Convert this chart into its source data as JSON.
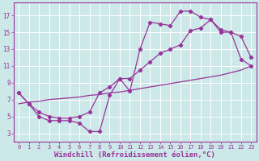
{
  "background_color": "#cce8e8",
  "grid_color": "#aacccc",
  "line_color": "#993399",
  "marker_color": "#993399",
  "xlabel": "Windchill (Refroidissement éolien,°C)",
  "xlabel_fontsize": 6.5,
  "xtick_labels": [
    "0",
    "1",
    "2",
    "3",
    "4",
    "5",
    "6",
    "7",
    "8",
    "9",
    "10",
    "11",
    "12",
    "13",
    "14",
    "15",
    "16",
    "17",
    "18",
    "19",
    "20",
    "21",
    "22",
    "23"
  ],
  "ytick_labels": [
    "3",
    "5",
    "7",
    "9",
    "11",
    "13",
    "15",
    "17"
  ],
  "ytick_vals": [
    3,
    5,
    7,
    9,
    11,
    13,
    15,
    17
  ],
  "xlim": [
    -0.5,
    23.5
  ],
  "ylim": [
    2.0,
    18.5
  ],
  "line1_x": [
    0,
    1,
    2,
    3,
    4,
    5,
    6,
    7,
    8,
    9,
    10,
    11,
    12,
    13,
    14,
    15,
    16,
    17,
    18,
    19,
    20,
    21,
    22,
    23
  ],
  "line1_y": [
    7.8,
    6.5,
    5.0,
    4.5,
    4.5,
    4.5,
    4.2,
    3.2,
    3.2,
    7.5,
    9.5,
    8.0,
    13.0,
    16.2,
    16.0,
    15.8,
    17.5,
    17.5,
    16.8,
    16.5,
    15.3,
    15.0,
    14.5,
    12.0
  ],
  "line2_x": [
    0,
    1,
    2,
    3,
    4,
    5,
    6,
    7,
    8,
    9,
    10,
    11,
    12,
    13,
    14,
    15,
    16,
    17,
    18,
    19,
    20,
    21,
    22,
    23
  ],
  "line2_y": [
    7.8,
    6.5,
    5.5,
    5.0,
    4.8,
    4.8,
    5.0,
    5.5,
    7.8,
    8.5,
    9.5,
    9.5,
    10.5,
    11.5,
    12.5,
    13.0,
    13.5,
    15.2,
    15.5,
    16.5,
    15.0,
    15.0,
    11.8,
    11.0
  ],
  "line3_x": [
    0,
    1,
    2,
    3,
    4,
    5,
    6,
    7,
    8,
    9,
    10,
    11,
    12,
    13,
    14,
    15,
    16,
    17,
    18,
    19,
    20,
    21,
    22,
    23
  ],
  "line3_y": [
    6.5,
    6.7,
    6.8,
    7.0,
    7.1,
    7.2,
    7.3,
    7.5,
    7.6,
    7.8,
    7.9,
    8.1,
    8.3,
    8.5,
    8.7,
    8.9,
    9.1,
    9.3,
    9.5,
    9.7,
    9.9,
    10.2,
    10.5,
    11.0
  ]
}
